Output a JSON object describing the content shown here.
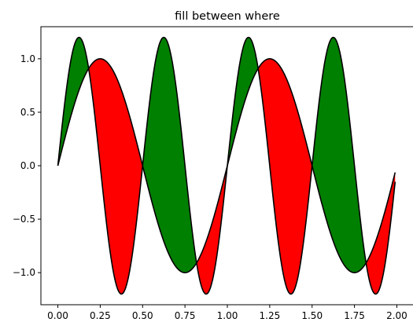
{
  "chart_data": {
    "type": "area",
    "title": "fill between where",
    "xlabel": "",
    "ylabel": "",
    "xlim": [
      -0.1,
      2.1
    ],
    "ylim": [
      -1.3,
      1.3
    ],
    "xticks": [
      0.0,
      0.25,
      0.5,
      0.75,
      1.0,
      1.25,
      1.5,
      1.75,
      2.0
    ],
    "xtick_labels": [
      "0.00",
      "0.25",
      "0.50",
      "0.75",
      "1.00",
      "1.25",
      "1.50",
      "1.75",
      "2.00"
    ],
    "yticks": [
      -1.0,
      -0.5,
      0.0,
      0.5,
      1.0
    ],
    "ytick_labels": [
      "−1.0",
      "−0.5",
      "0.0",
      "0.5",
      "1.0"
    ],
    "x_range": [
      0.0,
      1.99
    ],
    "grid": false,
    "series": [
      {
        "formula": "sin(2*pi*x)",
        "color": "#000000"
      },
      {
        "formula": "1.2*sin(4*pi*x)",
        "color": "#000000"
      }
    ],
    "fills": [
      {
        "where": "y2 >= y1",
        "color": "#008000"
      },
      {
        "where": "y2 <= y1",
        "color": "#ff0000"
      }
    ]
  }
}
